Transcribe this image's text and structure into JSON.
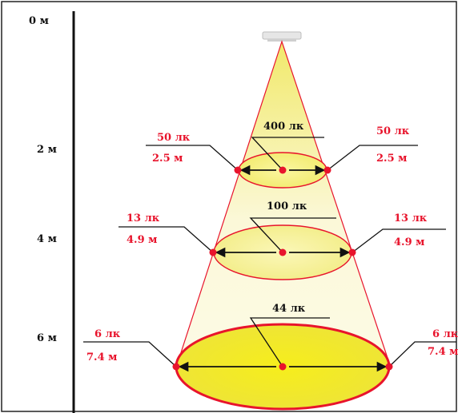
{
  "colors": {
    "frame": "#222222",
    "light_cone": "#f2ef8f",
    "ellipse_edge": "#e8142c",
    "ellipse_fill_top": "#f7f3b5",
    "ellipse_fill_bottom": "#f2ec14",
    "point": "#e8142c",
    "side_text": "#e8142c",
    "arrow": "#111111"
  },
  "depth_scale": [
    "0 м",
    "2 м",
    "4 м",
    "6 м"
  ],
  "levels": [
    {
      "center_lux": "400 лк",
      "left_lux": "50 лк",
      "left_diameter": "2.5 м",
      "right_lux": "50 лк",
      "right_diameter": "2.5 м"
    },
    {
      "center_lux": "100 лк",
      "left_lux": "13 лк",
      "left_diameter": "4.9 м",
      "right_lux": "13 лк",
      "right_diameter": "4.9 м"
    },
    {
      "center_lux": "44 лк",
      "left_lux": "6 лк",
      "left_diameter": "7.4 м",
      "right_lux": "6 лк",
      "right_diameter": "7.4 м"
    }
  ]
}
